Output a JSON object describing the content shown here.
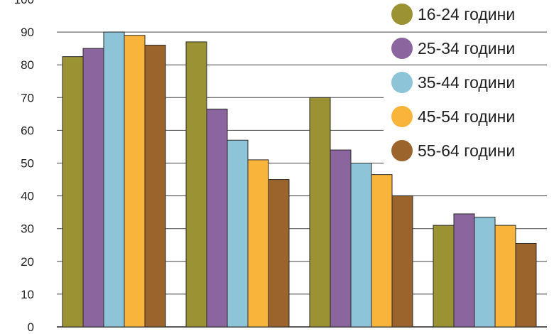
{
  "chart_data": {
    "type": "bar",
    "title": "",
    "xlabel": "",
    "ylabel": "",
    "categories": [
      "",
      "",
      "",
      ""
    ],
    "ylim": [
      0,
      100
    ],
    "yticks": [
      0,
      10,
      20,
      30,
      40,
      50,
      60,
      70,
      80,
      90,
      100
    ],
    "grid": true,
    "legend_position": "top-right",
    "series": [
      {
        "name": "16-24 години",
        "color": "#9b9233",
        "values": [
          82.5,
          87,
          70,
          31
        ]
      },
      {
        "name": "25-34 години",
        "color": "#8a659e",
        "values": [
          85,
          66.5,
          54,
          34.5
        ]
      },
      {
        "name": "35-44 години",
        "color": "#8dc4d8",
        "values": [
          90,
          57,
          50,
          33.5
        ]
      },
      {
        "name": "45-54 години",
        "color": "#f9b43c",
        "values": [
          89,
          51,
          46.5,
          31
        ]
      },
      {
        "name": "55-64 години",
        "color": "#9a642c",
        "values": [
          86,
          45,
          40,
          25.5
        ]
      }
    ]
  }
}
